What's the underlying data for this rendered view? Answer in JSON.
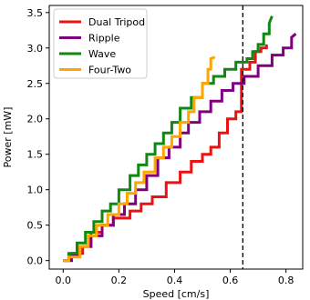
{
  "chart_data": {
    "type": "line",
    "title": "",
    "xlabel": "Speed [cm/s]",
    "ylabel": "Power [mW]",
    "xlim": [
      -0.05,
      0.86
    ],
    "ylim": [
      -0.12,
      3.6
    ],
    "xticks": [
      0.0,
      0.2,
      0.4,
      0.6,
      0.8
    ],
    "xtick_labels": [
      "0.0",
      "0.2",
      "0.4",
      "0.6",
      "0.8"
    ],
    "yticks": [
      0.0,
      0.5,
      1.0,
      1.5,
      2.0,
      2.5,
      3.0,
      3.5
    ],
    "ytick_labels": [
      "0.0",
      "0.5",
      "1.0",
      "1.5",
      "2.0",
      "2.5",
      "3.0",
      "3.5"
    ],
    "grid": false,
    "legend_position": "top-left",
    "vline": {
      "x": 0.645,
      "style": "dashed",
      "color": "#000000"
    },
    "series": [
      {
        "name": "Dual Tripod",
        "color": "#ee1111",
        "points": [
          [
            0.0,
            0.0
          ],
          [
            0.03,
            0.0
          ],
          [
            0.03,
            0.1
          ],
          [
            0.07,
            0.1
          ],
          [
            0.07,
            0.2
          ],
          [
            0.1,
            0.2
          ],
          [
            0.1,
            0.4
          ],
          [
            0.14,
            0.4
          ],
          [
            0.14,
            0.5
          ],
          [
            0.18,
            0.5
          ],
          [
            0.18,
            0.6
          ],
          [
            0.24,
            0.6
          ],
          [
            0.24,
            0.7
          ],
          [
            0.28,
            0.7
          ],
          [
            0.28,
            0.8
          ],
          [
            0.32,
            0.8
          ],
          [
            0.32,
            0.9
          ],
          [
            0.37,
            0.9
          ],
          [
            0.37,
            1.1
          ],
          [
            0.42,
            1.1
          ],
          [
            0.42,
            1.25
          ],
          [
            0.46,
            1.25
          ],
          [
            0.46,
            1.4
          ],
          [
            0.5,
            1.4
          ],
          [
            0.5,
            1.5
          ],
          [
            0.53,
            1.5
          ],
          [
            0.53,
            1.6
          ],
          [
            0.56,
            1.6
          ],
          [
            0.56,
            1.8
          ],
          [
            0.59,
            1.8
          ],
          [
            0.59,
            2.0
          ],
          [
            0.62,
            2.0
          ],
          [
            0.62,
            2.1
          ],
          [
            0.64,
            2.1
          ],
          [
            0.64,
            2.7
          ],
          [
            0.67,
            2.7
          ],
          [
            0.67,
            2.8
          ],
          [
            0.69,
            2.8
          ],
          [
            0.69,
            2.95
          ],
          [
            0.71,
            2.95
          ],
          [
            0.71,
            3.0
          ],
          [
            0.73,
            3.0
          ],
          [
            0.73,
            3.05
          ]
        ]
      },
      {
        "name": "Ripple",
        "color": "#800080",
        "points": [
          [
            0.0,
            0.0
          ],
          [
            0.03,
            0.0
          ],
          [
            0.03,
            0.08
          ],
          [
            0.06,
            0.08
          ],
          [
            0.06,
            0.2
          ],
          [
            0.1,
            0.2
          ],
          [
            0.1,
            0.35
          ],
          [
            0.14,
            0.35
          ],
          [
            0.14,
            0.5
          ],
          [
            0.18,
            0.5
          ],
          [
            0.18,
            0.65
          ],
          [
            0.22,
            0.65
          ],
          [
            0.22,
            0.8
          ],
          [
            0.26,
            0.8
          ],
          [
            0.26,
            1.0
          ],
          [
            0.3,
            1.0
          ],
          [
            0.3,
            1.2
          ],
          [
            0.34,
            1.2
          ],
          [
            0.34,
            1.45
          ],
          [
            0.38,
            1.45
          ],
          [
            0.38,
            1.6
          ],
          [
            0.42,
            1.6
          ],
          [
            0.42,
            1.8
          ],
          [
            0.45,
            1.8
          ],
          [
            0.45,
            1.95
          ],
          [
            0.49,
            1.95
          ],
          [
            0.49,
            2.1
          ],
          [
            0.53,
            2.1
          ],
          [
            0.53,
            2.25
          ],
          [
            0.57,
            2.25
          ],
          [
            0.57,
            2.4
          ],
          [
            0.61,
            2.4
          ],
          [
            0.61,
            2.5
          ],
          [
            0.65,
            2.5
          ],
          [
            0.65,
            2.6
          ],
          [
            0.7,
            2.6
          ],
          [
            0.7,
            2.75
          ],
          [
            0.75,
            2.75
          ],
          [
            0.75,
            2.9
          ],
          [
            0.79,
            2.9
          ],
          [
            0.79,
            3.0
          ],
          [
            0.82,
            3.0
          ],
          [
            0.82,
            3.15
          ],
          [
            0.835,
            3.2
          ]
        ]
      },
      {
        "name": "Wave",
        "color": "#118811",
        "points": [
          [
            0.0,
            0.0
          ],
          [
            0.02,
            0.0
          ],
          [
            0.02,
            0.1
          ],
          [
            0.05,
            0.1
          ],
          [
            0.05,
            0.25
          ],
          [
            0.08,
            0.25
          ],
          [
            0.08,
            0.4
          ],
          [
            0.11,
            0.4
          ],
          [
            0.11,
            0.55
          ],
          [
            0.14,
            0.55
          ],
          [
            0.14,
            0.7
          ],
          [
            0.17,
            0.7
          ],
          [
            0.17,
            0.8
          ],
          [
            0.2,
            0.8
          ],
          [
            0.2,
            1.0
          ],
          [
            0.24,
            1.0
          ],
          [
            0.24,
            1.2
          ],
          [
            0.27,
            1.2
          ],
          [
            0.27,
            1.35
          ],
          [
            0.3,
            1.35
          ],
          [
            0.3,
            1.5
          ],
          [
            0.33,
            1.5
          ],
          [
            0.33,
            1.65
          ],
          [
            0.36,
            1.65
          ],
          [
            0.36,
            1.8
          ],
          [
            0.39,
            1.8
          ],
          [
            0.39,
            1.95
          ],
          [
            0.42,
            1.95
          ],
          [
            0.42,
            2.15
          ],
          [
            0.46,
            2.15
          ],
          [
            0.46,
            2.3
          ],
          [
            0.5,
            2.3
          ],
          [
            0.5,
            2.5
          ],
          [
            0.54,
            2.5
          ],
          [
            0.54,
            2.6
          ],
          [
            0.58,
            2.6
          ],
          [
            0.58,
            2.7
          ],
          [
            0.62,
            2.7
          ],
          [
            0.62,
            2.8
          ],
          [
            0.66,
            2.8
          ],
          [
            0.66,
            2.85
          ],
          [
            0.68,
            2.85
          ],
          [
            0.68,
            2.95
          ],
          [
            0.7,
            2.95
          ],
          [
            0.7,
            3.05
          ],
          [
            0.72,
            3.05
          ],
          [
            0.72,
            3.2
          ],
          [
            0.74,
            3.2
          ],
          [
            0.74,
            3.35
          ],
          [
            0.75,
            3.45
          ]
        ]
      },
      {
        "name": "Four-Two",
        "color": "#ffa500",
        "points": [
          [
            0.0,
            0.0
          ],
          [
            0.02,
            0.0
          ],
          [
            0.02,
            0.05
          ],
          [
            0.06,
            0.05
          ],
          [
            0.06,
            0.2
          ],
          [
            0.09,
            0.2
          ],
          [
            0.09,
            0.35
          ],
          [
            0.12,
            0.35
          ],
          [
            0.12,
            0.5
          ],
          [
            0.16,
            0.5
          ],
          [
            0.16,
            0.65
          ],
          [
            0.2,
            0.65
          ],
          [
            0.2,
            0.8
          ],
          [
            0.23,
            0.8
          ],
          [
            0.23,
            0.95
          ],
          [
            0.26,
            0.95
          ],
          [
            0.26,
            1.1
          ],
          [
            0.29,
            1.1
          ],
          [
            0.29,
            1.25
          ],
          [
            0.33,
            1.25
          ],
          [
            0.33,
            1.45
          ],
          [
            0.36,
            1.45
          ],
          [
            0.36,
            1.6
          ],
          [
            0.39,
            1.6
          ],
          [
            0.39,
            1.75
          ],
          [
            0.42,
            1.75
          ],
          [
            0.42,
            1.95
          ],
          [
            0.45,
            1.95
          ],
          [
            0.45,
            2.1
          ],
          [
            0.47,
            2.1
          ],
          [
            0.47,
            2.3
          ],
          [
            0.5,
            2.3
          ],
          [
            0.5,
            2.5
          ],
          [
            0.52,
            2.5
          ],
          [
            0.52,
            2.7
          ],
          [
            0.53,
            2.7
          ],
          [
            0.53,
            2.85
          ],
          [
            0.545,
            2.87
          ]
        ]
      }
    ]
  }
}
